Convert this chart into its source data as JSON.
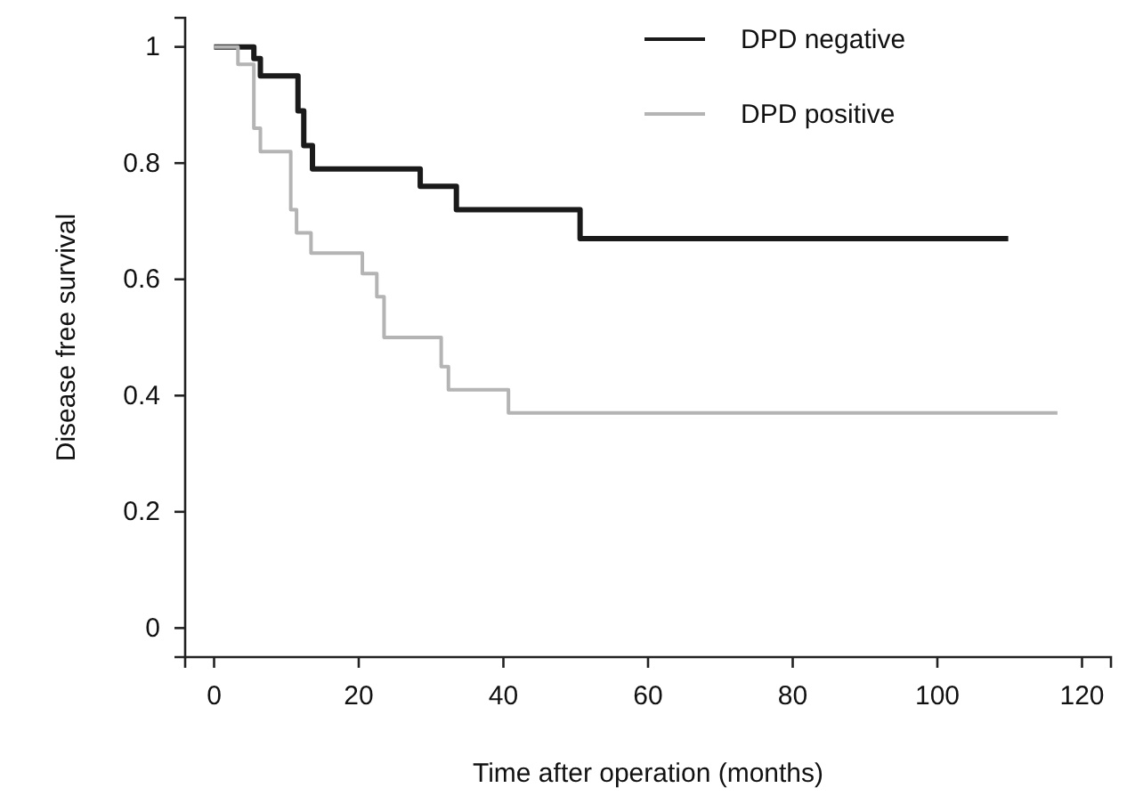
{
  "chart_data": {
    "type": "step",
    "xlabel": "Time after operation (months)",
    "ylabel": "Disease free survival",
    "xlim": [
      -4,
      124
    ],
    "ylim": [
      -0.05,
      1.05
    ],
    "xticks": [
      0,
      20,
      40,
      60,
      80,
      100,
      120
    ],
    "yticks": [
      0,
      0.2,
      0.4,
      0.6,
      0.8,
      {
        "value": 1,
        "label": "1"
      }
    ],
    "grid": false,
    "legend": "top right",
    "marker": "none",
    "line_style": "solid",
    "series": [
      {
        "name": "DPD negative",
        "color": "#1a1a1a",
        "x": [
          0,
          5.5,
          6.4,
          11.6,
          12.4,
          13.6,
          28.5,
          33.5,
          50.6,
          109.8
        ],
        "values": [
          1,
          0.98,
          0.95,
          0.89,
          0.83,
          0.79,
          0.76,
          0.72,
          0.67,
          0.67
        ]
      },
      {
        "name": "DPD positive",
        "color": "#b4b4b4",
        "x": [
          0,
          3.3,
          5.5,
          6.4,
          10.6,
          11.4,
          13.4,
          20.5,
          22.5,
          23.5,
          31.4,
          32.4,
          40.7,
          116.6
        ],
        "values": [
          1,
          0.97,
          0.86,
          0.82,
          0.72,
          0.68,
          0.645,
          0.61,
          0.57,
          0.5,
          0.45,
          0.41,
          0.37,
          0.37
        ]
      }
    ]
  }
}
